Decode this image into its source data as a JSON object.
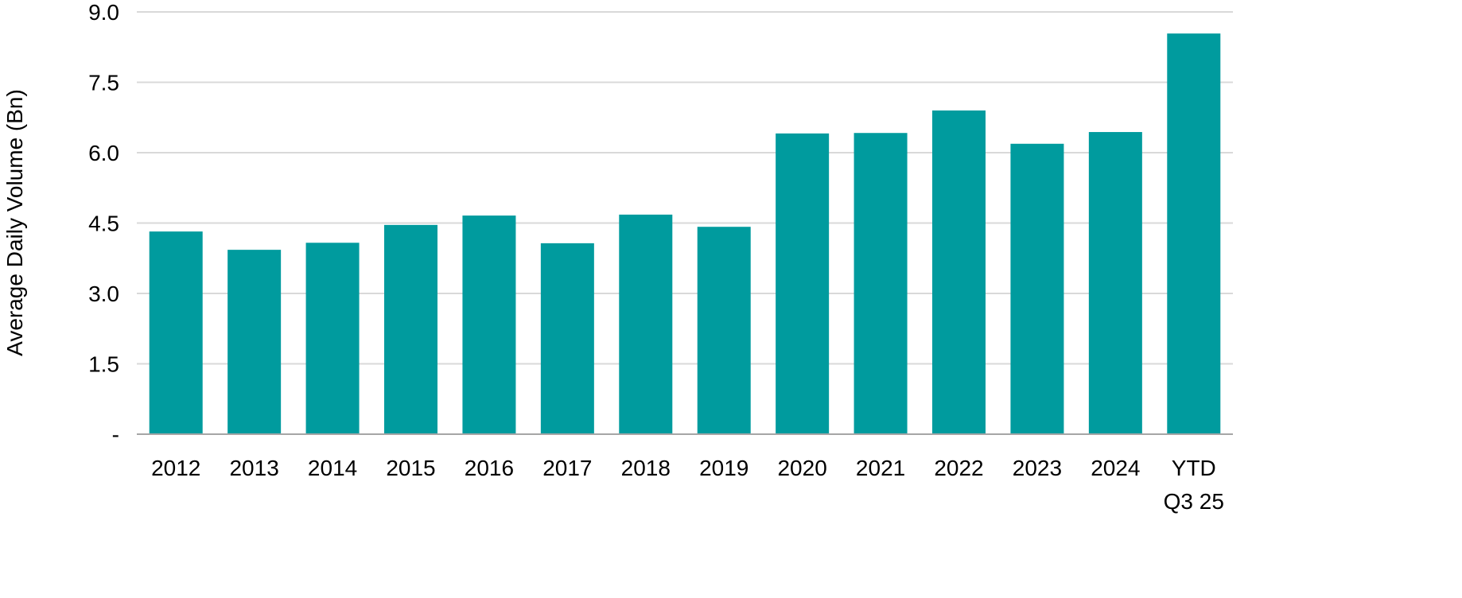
{
  "chart_data": {
    "type": "bar",
    "title": "",
    "xlabel": "",
    "ylabel": "Average Daily Volume (Bn)",
    "ylim": [
      0,
      9.0
    ],
    "yticks": [
      0,
      1.5,
      3.0,
      4.5,
      6.0,
      7.5,
      9.0
    ],
    "ytick_labels": [
      "-",
      "1.5",
      "3.0",
      "4.5",
      "6.0",
      "7.5",
      "9.0"
    ],
    "grid": true,
    "categories": [
      [
        "2012"
      ],
      [
        "2013"
      ],
      [
        "2014"
      ],
      [
        "2015"
      ],
      [
        "2016"
      ],
      [
        "2017"
      ],
      [
        "2018"
      ],
      [
        "2019"
      ],
      [
        "2020"
      ],
      [
        "2021"
      ],
      [
        "2022"
      ],
      [
        "2023"
      ],
      [
        "2024"
      ],
      [
        "YTD",
        "Q3 25"
      ]
    ],
    "values": [
      4.32,
      3.93,
      4.08,
      4.46,
      4.66,
      4.07,
      4.68,
      4.42,
      6.41,
      6.42,
      6.9,
      6.19,
      6.44,
      8.54
    ],
    "colors": {
      "bar": "#009B9E",
      "grid": "#D9D9D9",
      "axis": "#A6A6A6"
    }
  }
}
